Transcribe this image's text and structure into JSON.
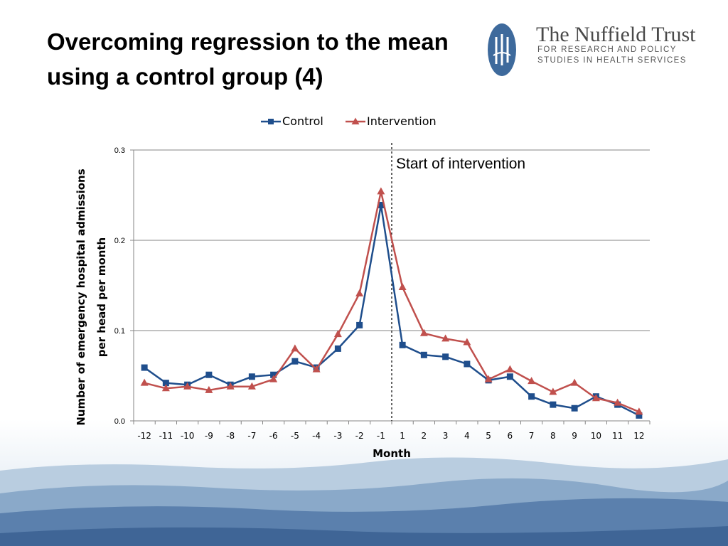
{
  "slide": {
    "title_line1": "Overcoming regression to the mean",
    "title_line2": "using a control group (4)"
  },
  "logo": {
    "name": "The Nuffield Trust",
    "tagline_line1": "FOR RESEARCH AND POLICY",
    "tagline_line2": "STUDIES IN HEALTH SERVICES"
  },
  "colors": {
    "control": "#1f4e8c",
    "intervention": "#c0504d",
    "gridline": "#868686",
    "landscape_sky": "#e6eef5",
    "landscape_far": "#a9c2d9",
    "landscape_mid": "#7d9fc2",
    "landscape_near": "#4c73a3"
  },
  "chart_data": {
    "type": "line",
    "title": "",
    "xlabel": "Month",
    "ylabel_line1": "Number of emergency hospital admissions",
    "ylabel_line2": "per head per month",
    "ylim": [
      0,
      0.3
    ],
    "yticks": [
      "0.0",
      "0.1",
      "0.2",
      "0.3"
    ],
    "grid": true,
    "legend_position": "top",
    "categories": [
      "-12",
      "-11",
      "-10",
      "-9",
      "-8",
      "-7",
      "-6",
      "-5",
      "-4",
      "-3",
      "-2",
      "-1",
      "1",
      "2",
      "3",
      "4",
      "5",
      "6",
      "7",
      "8",
      "9",
      "10",
      "11",
      "12"
    ],
    "series": [
      {
        "name": "Control",
        "marker": "square",
        "values": [
          0.059,
          0.042,
          0.04,
          0.051,
          0.04,
          0.049,
          0.051,
          0.066,
          0.059,
          0.08,
          0.106,
          0.239,
          0.084,
          0.073,
          0.071,
          0.063,
          0.045,
          0.049,
          0.027,
          0.018,
          0.014,
          0.027,
          0.018,
          0.006
        ]
      },
      {
        "name": "Intervention",
        "marker": "triangle",
        "values": [
          0.042,
          0.036,
          0.038,
          0.034,
          0.038,
          0.038,
          0.046,
          0.08,
          0.057,
          0.096,
          0.141,
          0.254,
          0.148,
          0.097,
          0.091,
          0.087,
          0.046,
          0.057,
          0.044,
          0.032,
          0.042,
          0.025,
          0.02,
          0.01
        ]
      }
    ],
    "annotations": [
      {
        "text": "Start of intervention",
        "x_between": [
          "-1",
          "1"
        ],
        "style": "dashed-vertical"
      }
    ]
  }
}
